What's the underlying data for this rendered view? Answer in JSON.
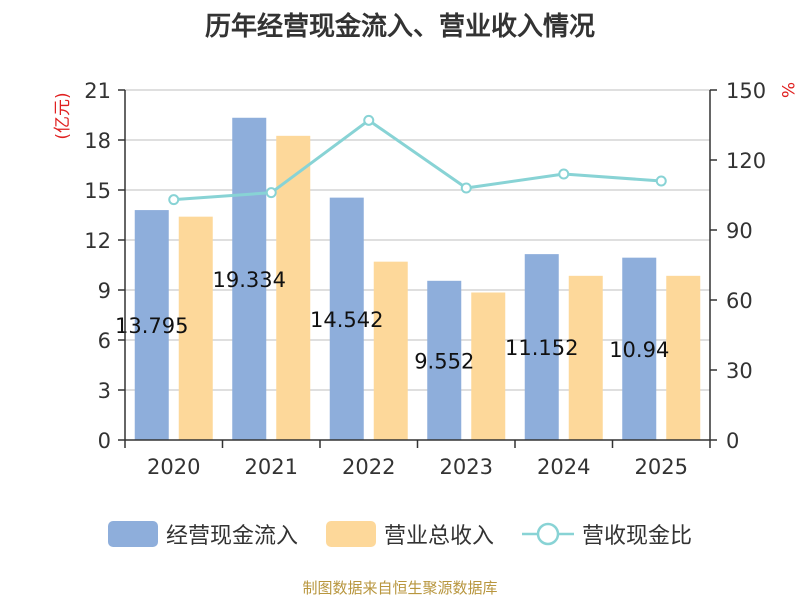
{
  "chart_data": {
    "type": "bar",
    "title": "历年经营现金流入、营业收入情况",
    "categories": [
      "2020",
      "2021",
      "2022",
      "2023",
      "2024",
      "2025"
    ],
    "y_left": {
      "unit_label": "(亿元)",
      "ylim": [
        0,
        21
      ],
      "ticks": [
        "0",
        "3",
        "6",
        "9",
        "12",
        "15",
        "18",
        "21"
      ]
    },
    "y_right": {
      "unit_label": "%",
      "ylim": [
        0,
        150
      ],
      "ticks": [
        "0",
        "30",
        "60",
        "90",
        "120",
        "150"
      ]
    },
    "series": [
      {
        "name": "经营现金流入",
        "type": "bar",
        "axis": "left",
        "color": "#8eaedb",
        "values": [
          13.795,
          19.334,
          14.542,
          9.552,
          11.152,
          10.94
        ],
        "labels": [
          "13.795",
          "19.334",
          "14.542",
          "9.552",
          "11.152",
          "10.94"
        ]
      },
      {
        "name": "营业总收入",
        "type": "bar",
        "axis": "left",
        "color": "#fdd89a",
        "values": [
          13.4,
          18.25,
          10.7,
          8.85,
          9.85,
          9.85
        ]
      },
      {
        "name": "营收现金比",
        "type": "line",
        "axis": "right",
        "color": "#88d3d5",
        "values": [
          103,
          106,
          137,
          108,
          114,
          111
        ]
      }
    ],
    "grid": true,
    "legend_position": "bottom"
  },
  "source_text": "制图数据来自恒生聚源数据库"
}
